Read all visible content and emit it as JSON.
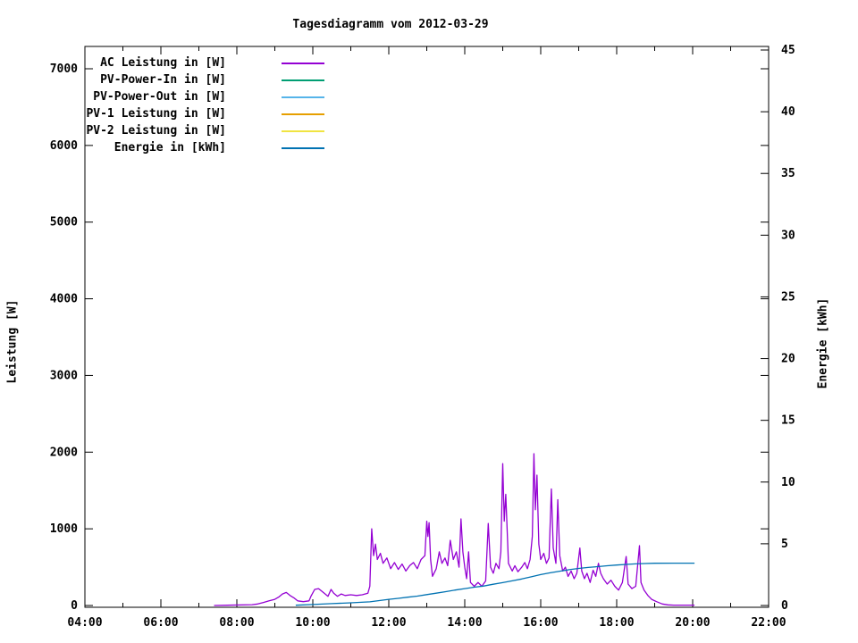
{
  "title": "Tagesdiagramm vom 2012-03-29",
  "colors": {
    "background": "#ffffff",
    "axis": "#000000",
    "text": "#000000"
  },
  "chart_data": {
    "type": "line",
    "title": "Tagesdiagramm vom 2012-03-29",
    "grid": false,
    "legend_position": "top-left-inside",
    "x_axis": {
      "unit": "time-of-day",
      "range_hours": [
        4,
        22
      ],
      "major_tick_hours": [
        4,
        6,
        8,
        10,
        12,
        14,
        16,
        18,
        20,
        22
      ],
      "major_tick_labels": [
        "04:00",
        "06:00",
        "08:00",
        "10:00",
        "12:00",
        "14:00",
        "16:00",
        "18:00",
        "20:00",
        "22:00"
      ],
      "minor_tick_hours": [
        5,
        7,
        9,
        11,
        13,
        15,
        17,
        19,
        21
      ]
    },
    "y_left": {
      "label": "Leistung [W]",
      "range": [
        0,
        7300
      ],
      "tick_values": [
        0,
        1000,
        2000,
        3000,
        4000,
        5000,
        6000,
        7000
      ],
      "tick_labels": [
        "0",
        "1000",
        "2000",
        "3000",
        "4000",
        "5000",
        "6000",
        "7000"
      ]
    },
    "y_right": {
      "label": "Energie [kWh]",
      "range": [
        0,
        45.2
      ],
      "tick_values": [
        0,
        5,
        10,
        15,
        20,
        25,
        30,
        35,
        40,
        45
      ],
      "tick_labels": [
        "0",
        "5",
        "10",
        "15",
        "20",
        "25",
        "30",
        "35",
        "40",
        "45"
      ]
    },
    "series": [
      {
        "name": "AC Leistung in [W]",
        "color": "#9400d3",
        "axis": "left",
        "points": [
          [
            7.4,
            0
          ],
          [
            8.4,
            10
          ],
          [
            8.55,
            20
          ],
          [
            8.7,
            40
          ],
          [
            8.85,
            60
          ],
          [
            9.0,
            80
          ],
          [
            9.1,
            110
          ],
          [
            9.2,
            150
          ],
          [
            9.3,
            170
          ],
          [
            9.4,
            130
          ],
          [
            9.5,
            100
          ],
          [
            9.6,
            60
          ],
          [
            9.75,
            50
          ],
          [
            9.9,
            60
          ],
          [
            9.95,
            120
          ],
          [
            10.05,
            210
          ],
          [
            10.15,
            220
          ],
          [
            10.2,
            200
          ],
          [
            10.3,
            160
          ],
          [
            10.4,
            120
          ],
          [
            10.48,
            210
          ],
          [
            10.55,
            160
          ],
          [
            10.65,
            120
          ],
          [
            10.75,
            150
          ],
          [
            10.85,
            130
          ],
          [
            11.0,
            140
          ],
          [
            11.15,
            130
          ],
          [
            11.3,
            140
          ],
          [
            11.45,
            160
          ],
          [
            11.5,
            250
          ],
          [
            11.55,
            1000
          ],
          [
            11.6,
            650
          ],
          [
            11.65,
            800
          ],
          [
            11.7,
            600
          ],
          [
            11.78,
            680
          ],
          [
            11.85,
            550
          ],
          [
            11.95,
            620
          ],
          [
            12.05,
            480
          ],
          [
            12.15,
            560
          ],
          [
            12.25,
            470
          ],
          [
            12.35,
            540
          ],
          [
            12.45,
            450
          ],
          [
            12.55,
            520
          ],
          [
            12.65,
            560
          ],
          [
            12.75,
            480
          ],
          [
            12.85,
            600
          ],
          [
            12.95,
            650
          ],
          [
            13.0,
            1100
          ],
          [
            13.03,
            900
          ],
          [
            13.06,
            1080
          ],
          [
            13.1,
            600
          ],
          [
            13.15,
            380
          ],
          [
            13.25,
            480
          ],
          [
            13.33,
            700
          ],
          [
            13.4,
            550
          ],
          [
            13.48,
            620
          ],
          [
            13.55,
            520
          ],
          [
            13.62,
            850
          ],
          [
            13.7,
            600
          ],
          [
            13.78,
            700
          ],
          [
            13.85,
            500
          ],
          [
            13.9,
            1130
          ],
          [
            13.95,
            700
          ],
          [
            14.0,
            500
          ],
          [
            14.05,
            350
          ],
          [
            14.1,
            700
          ],
          [
            14.15,
            300
          ],
          [
            14.25,
            250
          ],
          [
            14.35,
            300
          ],
          [
            14.45,
            250
          ],
          [
            14.55,
            320
          ],
          [
            14.62,
            1070
          ],
          [
            14.68,
            500
          ],
          [
            14.75,
            420
          ],
          [
            14.82,
            550
          ],
          [
            14.9,
            480
          ],
          [
            14.95,
            700
          ],
          [
            15.0,
            1850
          ],
          [
            15.04,
            1100
          ],
          [
            15.08,
            1450
          ],
          [
            15.15,
            550
          ],
          [
            15.25,
            450
          ],
          [
            15.32,
            520
          ],
          [
            15.4,
            440
          ],
          [
            15.5,
            500
          ],
          [
            15.58,
            560
          ],
          [
            15.65,
            480
          ],
          [
            15.72,
            600
          ],
          [
            15.78,
            900
          ],
          [
            15.82,
            1980
          ],
          [
            15.86,
            1250
          ],
          [
            15.9,
            1700
          ],
          [
            15.95,
            800
          ],
          [
            16.0,
            600
          ],
          [
            16.08,
            680
          ],
          [
            16.15,
            550
          ],
          [
            16.22,
            620
          ],
          [
            16.28,
            1520
          ],
          [
            16.33,
            750
          ],
          [
            16.4,
            550
          ],
          [
            16.45,
            1380
          ],
          [
            16.5,
            650
          ],
          [
            16.58,
            450
          ],
          [
            16.65,
            500
          ],
          [
            16.72,
            380
          ],
          [
            16.8,
            450
          ],
          [
            16.88,
            350
          ],
          [
            16.95,
            420
          ],
          [
            17.03,
            750
          ],
          [
            17.08,
            450
          ],
          [
            17.15,
            350
          ],
          [
            17.22,
            420
          ],
          [
            17.3,
            300
          ],
          [
            17.38,
            460
          ],
          [
            17.45,
            380
          ],
          [
            17.52,
            550
          ],
          [
            17.58,
            420
          ],
          [
            17.65,
            350
          ],
          [
            17.75,
            280
          ],
          [
            17.85,
            330
          ],
          [
            17.95,
            250
          ],
          [
            18.05,
            200
          ],
          [
            18.15,
            300
          ],
          [
            18.25,
            640
          ],
          [
            18.3,
            280
          ],
          [
            18.4,
            220
          ],
          [
            18.5,
            250
          ],
          [
            18.6,
            780
          ],
          [
            18.64,
            300
          ],
          [
            18.72,
            200
          ],
          [
            18.82,
            130
          ],
          [
            18.92,
            80
          ],
          [
            19.05,
            50
          ],
          [
            19.2,
            20
          ],
          [
            19.35,
            8
          ],
          [
            19.5,
            5
          ],
          [
            20.05,
            5
          ]
        ]
      },
      {
        "name": "PV-Power-In in [W]",
        "color": "#009e73",
        "axis": "left",
        "points": []
      },
      {
        "name": "PV-Power-Out in [W]",
        "color": "#56b4e9",
        "axis": "left",
        "points": []
      },
      {
        "name": "PV-1 Leistung in [W]",
        "color": "#e69f00",
        "axis": "left",
        "points": []
      },
      {
        "name": "PV-2 Leistung in [W]",
        "color": "#f0e442",
        "axis": "left",
        "points": []
      },
      {
        "name": "Energie in [kWh]",
        "color": "#0072b2",
        "axis": "right",
        "points": [
          [
            9.55,
            0.02
          ],
          [
            10.0,
            0.08
          ],
          [
            10.5,
            0.15
          ],
          [
            11.0,
            0.22
          ],
          [
            11.5,
            0.3
          ],
          [
            11.75,
            0.4
          ],
          [
            12.0,
            0.5
          ],
          [
            12.25,
            0.58
          ],
          [
            12.5,
            0.67
          ],
          [
            12.75,
            0.76
          ],
          [
            13.0,
            0.88
          ],
          [
            13.25,
            1.0
          ],
          [
            13.5,
            1.12
          ],
          [
            13.75,
            1.25
          ],
          [
            14.0,
            1.37
          ],
          [
            14.25,
            1.48
          ],
          [
            14.5,
            1.58
          ],
          [
            14.75,
            1.72
          ],
          [
            15.0,
            1.85
          ],
          [
            15.25,
            2.0
          ],
          [
            15.5,
            2.15
          ],
          [
            15.75,
            2.32
          ],
          [
            16.0,
            2.5
          ],
          [
            16.25,
            2.65
          ],
          [
            16.5,
            2.78
          ],
          [
            16.75,
            2.9
          ],
          [
            17.0,
            3.0
          ],
          [
            17.25,
            3.08
          ],
          [
            17.5,
            3.15
          ],
          [
            17.75,
            3.22
          ],
          [
            18.0,
            3.28
          ],
          [
            18.25,
            3.33
          ],
          [
            18.5,
            3.37
          ],
          [
            18.75,
            3.4
          ],
          [
            19.0,
            3.42
          ],
          [
            19.5,
            3.43
          ],
          [
            20.05,
            3.43
          ]
        ]
      }
    ]
  }
}
